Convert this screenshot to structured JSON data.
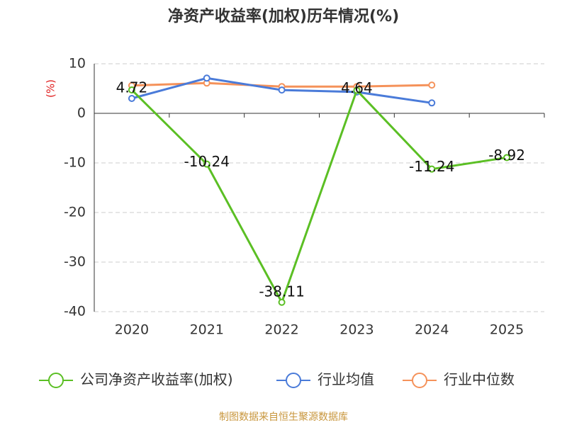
{
  "chart_data": {
    "type": "line",
    "title": "净资产收益率(加权)历年情况(%)",
    "y_label": "(%)",
    "categories": [
      "2020",
      "2021",
      "2022",
      "2023",
      "2024",
      "2025"
    ],
    "series": [
      {
        "name": "公司净资产收益率(加权)",
        "color": "#5bbf24",
        "values": [
          4.72,
          -10.24,
          -38.11,
          4.64,
          -11.24,
          -8.92
        ],
        "data_labels": true
      },
      {
        "name": "行业均值",
        "color": "#4a7bd9",
        "values": [
          3.0,
          7.1,
          4.7,
          4.3,
          2.1,
          null
        ]
      },
      {
        "name": "行业中位数",
        "color": "#f5925a",
        "values": [
          5.6,
          6.1,
          5.4,
          5.4,
          5.7,
          null
        ]
      }
    ],
    "ylim": [
      -40,
      10
    ],
    "yticks": [
      -40,
      -30,
      -20,
      -10,
      0,
      10
    ],
    "grid": true,
    "legend": "bottom",
    "source": "制图数据来自恒生聚源数据库"
  }
}
